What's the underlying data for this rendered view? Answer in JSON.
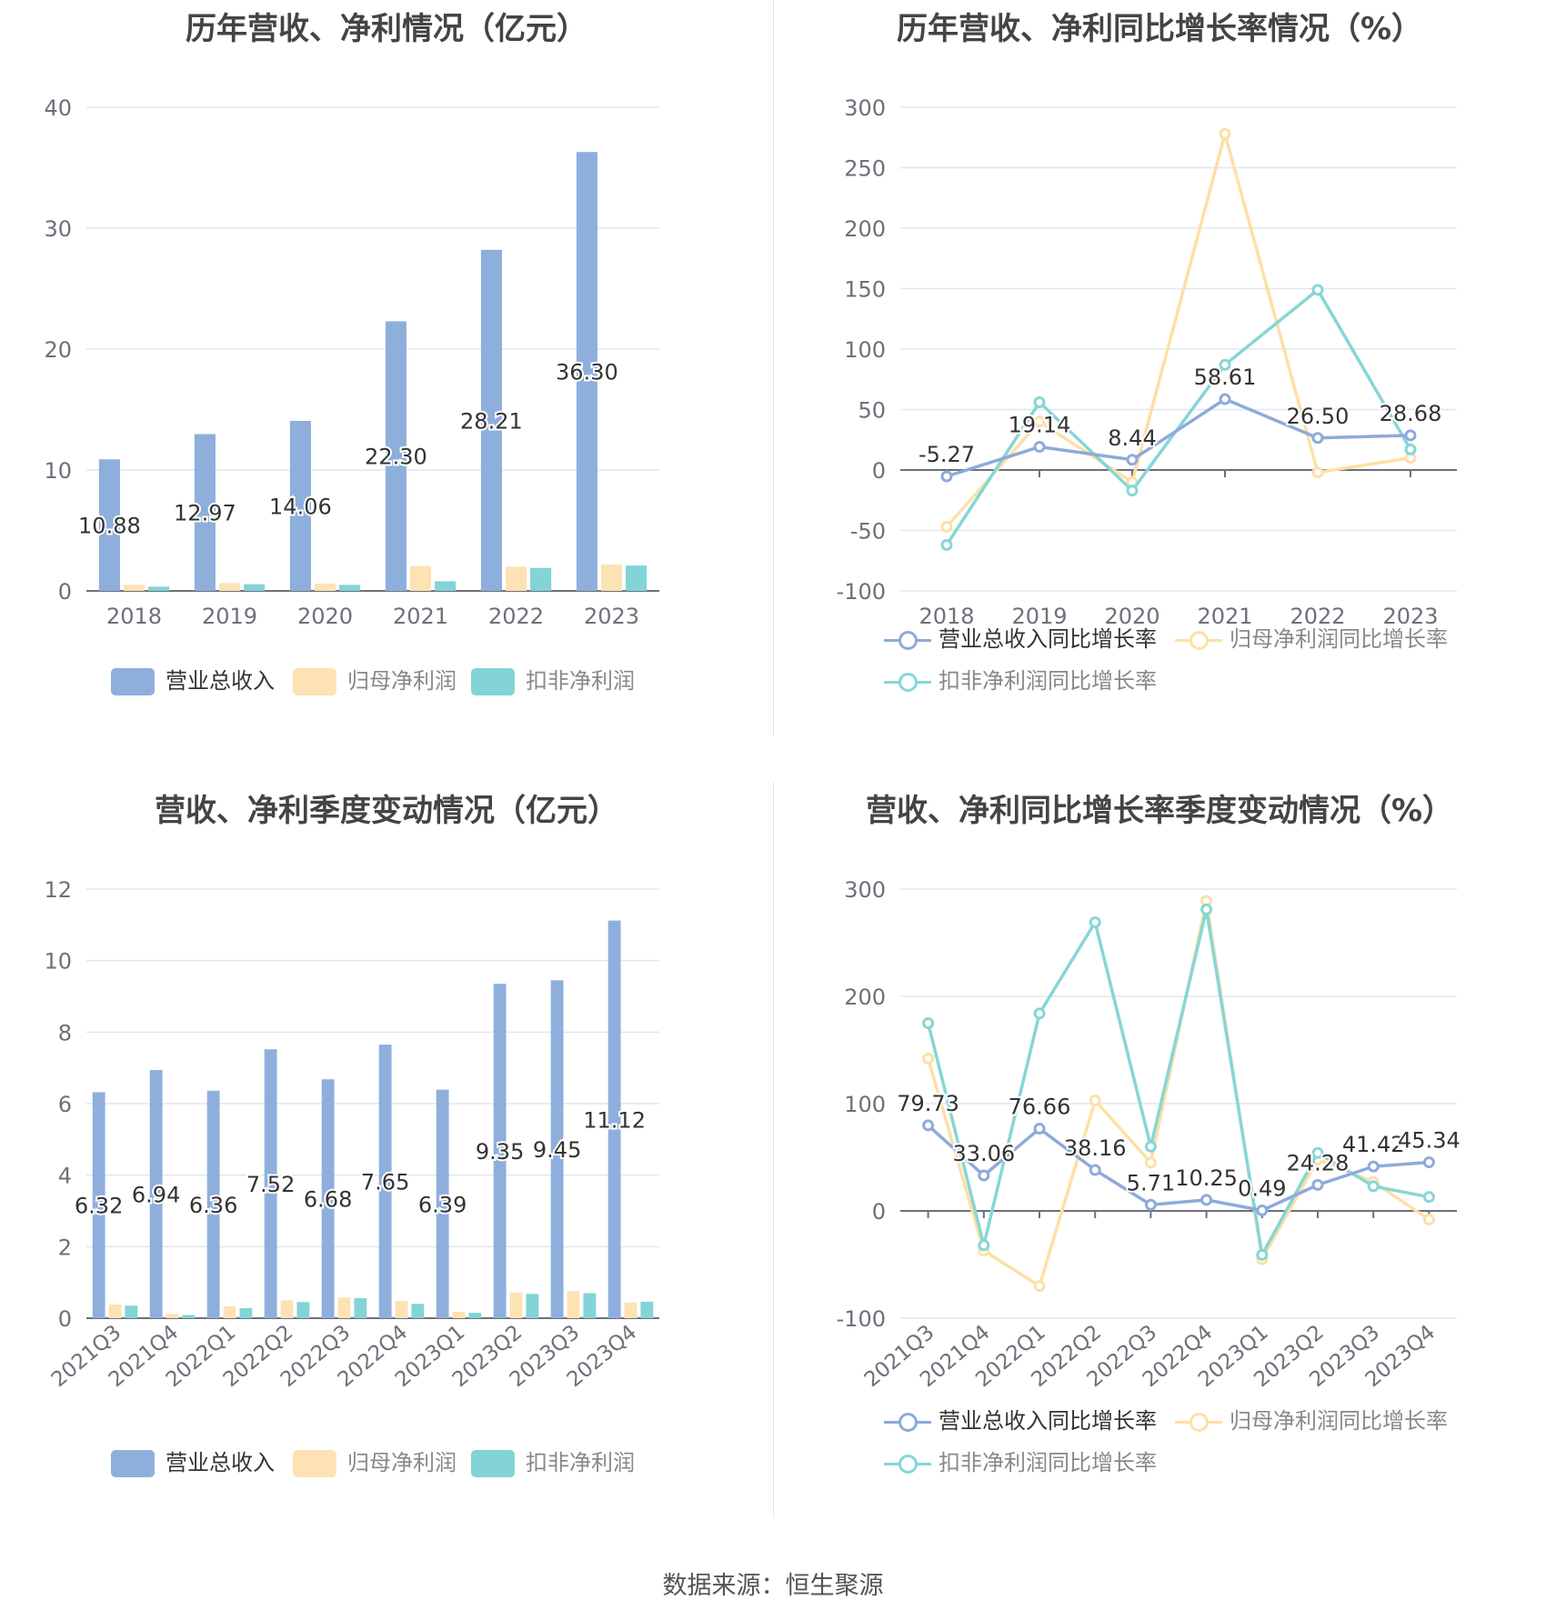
{
  "colors": {
    "revenue": "#8eafdc",
    "net_profit": "#fde2b4",
    "deducted_profit": "#82d4d6",
    "revenue_line": "#8eaadb",
    "net_profit_line": "#fde0a6",
    "deducted_profit_line": "#86d6d6",
    "grid": "#e0e6f1",
    "axis_text": "#6e7079",
    "label_text": "#333333"
  },
  "footer": "数据来源：恒生聚源",
  "chart_data": [
    {
      "id": "annual_values",
      "type": "bar",
      "title": "历年营收、净利情况（亿元）",
      "categories": [
        "2018",
        "2019",
        "2020",
        "2021",
        "2022",
        "2023"
      ],
      "ylim": [
        0,
        40
      ],
      "yticks": [
        0,
        10,
        20,
        30,
        40
      ],
      "grid": true,
      "legend_position": "bottom",
      "series": [
        {
          "name": "营业总收入",
          "color_key": "revenue",
          "values": [
            10.88,
            12.97,
            14.06,
            22.3,
            28.21,
            36.3
          ],
          "labels": [
            "10.88",
            "12.97",
            "14.06",
            "22.30",
            "28.21",
            "36.30"
          ]
        },
        {
          "name": "归母净利润",
          "color_key": "net_profit",
          "values": [
            0.5,
            0.65,
            0.6,
            2.05,
            2.0,
            2.2
          ]
        },
        {
          "name": "扣非净利润",
          "color_key": "deducted_profit",
          "values": [
            0.35,
            0.55,
            0.5,
            0.8,
            1.9,
            2.1
          ]
        }
      ]
    },
    {
      "id": "annual_growth",
      "type": "line",
      "title": "历年营收、净利同比增长率情况（%）",
      "categories": [
        "2018",
        "2019",
        "2020",
        "2021",
        "2022",
        "2023"
      ],
      "ylim": [
        -100,
        300
      ],
      "yticks": [
        -100,
        -50,
        0,
        50,
        100,
        150,
        200,
        250,
        300
      ],
      "grid": true,
      "legend_position": "bottom",
      "series": [
        {
          "name": "营业总收入同比增长率",
          "color_key": "revenue_line",
          "values": [
            -5.27,
            19.14,
            8.44,
            58.61,
            26.5,
            28.68
          ],
          "labels": [
            "-5.27",
            "19.14",
            "8.44",
            "58.61",
            "26.50",
            "28.68"
          ]
        },
        {
          "name": "归母净利润同比增长率",
          "color_key": "net_profit_line",
          "values": [
            -47,
            40,
            -10,
            278,
            -2,
            10
          ]
        },
        {
          "name": "扣非净利润同比增长率",
          "color_key": "deducted_profit_line",
          "values": [
            -62,
            56,
            -17,
            87,
            149,
            17
          ]
        }
      ]
    },
    {
      "id": "quarterly_values",
      "type": "bar",
      "title": "营收、净利季度变动情况（亿元）",
      "categories": [
        "2021Q3",
        "2021Q4",
        "2022Q1",
        "2022Q2",
        "2022Q3",
        "2022Q4",
        "2023Q1",
        "2023Q2",
        "2023Q3",
        "2023Q4"
      ],
      "ylim": [
        0,
        12
      ],
      "yticks": [
        0,
        2,
        4,
        6,
        8,
        10,
        12
      ],
      "grid": true,
      "legend_position": "bottom",
      "series": [
        {
          "name": "营业总收入",
          "color_key": "revenue",
          "values": [
            6.32,
            6.94,
            6.36,
            7.52,
            6.68,
            7.65,
            6.39,
            9.35,
            9.45,
            11.12
          ],
          "labels": [
            "6.32",
            "6.94",
            "6.36",
            "7.52",
            "6.68",
            "7.65",
            "6.39",
            "9.35",
            "9.45",
            "11.12"
          ]
        },
        {
          "name": "归母净利润",
          "color_key": "net_profit",
          "values": [
            0.38,
            0.12,
            0.33,
            0.5,
            0.58,
            0.48,
            0.18,
            0.72,
            0.76,
            0.44
          ]
        },
        {
          "name": "扣非净利润",
          "color_key": "deducted_profit",
          "values": [
            0.35,
            0.09,
            0.28,
            0.45,
            0.56,
            0.4,
            0.15,
            0.68,
            0.7,
            0.46
          ]
        }
      ]
    },
    {
      "id": "quarterly_growth",
      "type": "line",
      "title": "营收、净利同比增长率季度变动情况（%）",
      "categories": [
        "2021Q3",
        "2021Q4",
        "2022Q1",
        "2022Q2",
        "2022Q3",
        "2022Q4",
        "2023Q1",
        "2023Q2",
        "2023Q3",
        "2023Q4"
      ],
      "ylim": [
        -100,
        300
      ],
      "yticks": [
        -100,
        0,
        100,
        200,
        300
      ],
      "grid": true,
      "legend_position": "bottom",
      "series": [
        {
          "name": "营业总收入同比增长率",
          "color_key": "revenue_line",
          "values": [
            79.73,
            33.06,
            76.66,
            38.16,
            5.71,
            10.25,
            0.49,
            24.28,
            41.42,
            45.34
          ],
          "labels": [
            "79.73",
            "33.06",
            "76.66",
            "38.16",
            "5.71",
            "10.25",
            "0.49",
            "24.28",
            "41.42",
            "45.34"
          ]
        },
        {
          "name": "归母净利润同比增长率",
          "color_key": "net_profit_line",
          "values": [
            142,
            -37,
            -70,
            103,
            45,
            289,
            -45,
            48,
            27,
            -8
          ]
        },
        {
          "name": "扣非净利润同比增长率",
          "color_key": "deducted_profit_line",
          "values": [
            175,
            -32,
            184,
            269,
            60,
            281,
            -41,
            54,
            23,
            13
          ]
        }
      ]
    }
  ]
}
